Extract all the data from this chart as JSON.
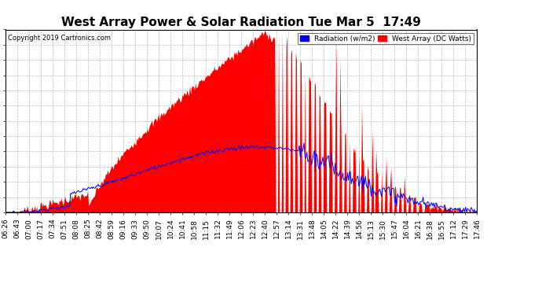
{
  "title": "West Array Power & Solar Radiation Tue Mar 5  17:49",
  "copyright": "Copyright 2019 Cartronics.com",
  "legend_radiation": "Radiation (w/m2)",
  "legend_west": "West Array (DC Watts)",
  "ymin": 0.0,
  "ymax": 2013.2,
  "yticks": [
    0.0,
    167.8,
    335.5,
    503.3,
    671.1,
    838.8,
    1006.6,
    1174.3,
    1342.1,
    1509.9,
    1677.6,
    1845.4,
    2013.2
  ],
  "background_color": "#ffffff",
  "plot_bg_color": "#ffffff",
  "grid_color": "#bbbbbb",
  "red_fill_color": "#ff0000",
  "blue_line_color": "#0000ff",
  "title_fontsize": 11,
  "axis_fontsize": 6.5,
  "xtick_labels": [
    "06:26",
    "06:43",
    "07:00",
    "07:17",
    "07:34",
    "07:51",
    "08:08",
    "08:25",
    "08:42",
    "08:59",
    "09:16",
    "09:33",
    "09:50",
    "10:07",
    "10:24",
    "10:41",
    "10:58",
    "11:15",
    "11:32",
    "11:49",
    "12:06",
    "12:23",
    "12:40",
    "12:57",
    "13:14",
    "13:31",
    "13:48",
    "14:05",
    "14:22",
    "14:39",
    "14:56",
    "15:13",
    "15:30",
    "15:47",
    "16:04",
    "16:21",
    "16:38",
    "16:55",
    "17:12",
    "17:29",
    "17:46"
  ]
}
